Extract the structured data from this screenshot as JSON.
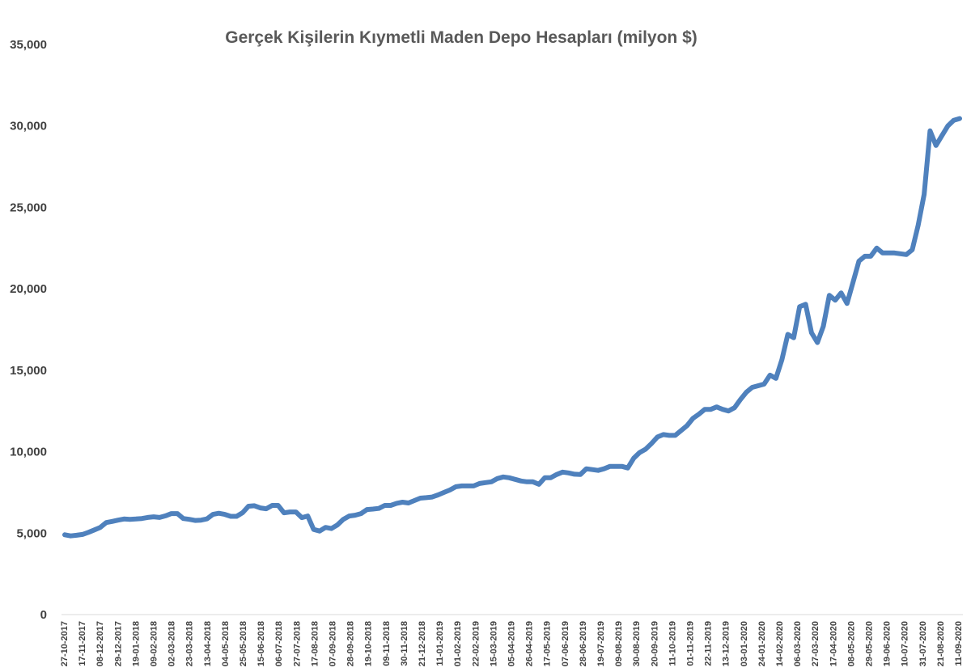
{
  "chart_data": {
    "type": "line",
    "title": "Gerçek Kişilerin Kıymetli Maden Depo Hesapları (milyon $)",
    "xlabel": "",
    "ylabel": "",
    "ylim": [
      0,
      35000
    ],
    "yticks": [
      "0",
      "5,000",
      "10,000",
      "15,000",
      "20,000",
      "25,000",
      "30,000",
      "35,000"
    ],
    "ytick_values": [
      0,
      5000,
      10000,
      15000,
      20000,
      25000,
      30000,
      35000
    ],
    "grid": false,
    "legend": "none",
    "line_color": "#4f81bd",
    "xtick_labels": [
      "27-10-2017",
      "17-11-2017",
      "08-12-2017",
      "29-12-2017",
      "19-01-2018",
      "09-02-2018",
      "02-03-2018",
      "23-03-2018",
      "13-04-2018",
      "04-05-2018",
      "25-05-2018",
      "15-06-2018",
      "06-07-2018",
      "27-07-2018",
      "17-08-2018",
      "07-09-2018",
      "28-09-2018",
      "19-10-2018",
      "09-11-2018",
      "30-11-2018",
      "21-12-2018",
      "11-01-2019",
      "01-02-2019",
      "22-02-2019",
      "15-03-2019",
      "05-04-2019",
      "26-04-2019",
      "17-05-2019",
      "07-06-2019",
      "28-06-2019",
      "19-07-2019",
      "09-08-2019",
      "30-08-2019",
      "20-09-2019",
      "11-10-2019",
      "01-11-2019",
      "22-11-2019",
      "13-12-2019",
      "03-01-2020",
      "24-01-2020",
      "14-02-2020",
      "06-03-2020",
      "27-03-2020",
      "17-04-2020",
      "08-05-2020",
      "29-05-2020",
      "19-06-2020",
      "10-07-2020",
      "31-07-2020",
      "21-08-2020",
      "11-09-2020"
    ],
    "series": [
      {
        "values": [
          4900,
          4830,
          4870,
          4920,
          5050,
          5200,
          5350,
          5650,
          5720,
          5800,
          5870,
          5850,
          5870,
          5900,
          5960,
          6000,
          5960,
          6060,
          6200,
          6200,
          5900,
          5850,
          5780,
          5800,
          5880,
          6150,
          6220,
          6150,
          6030,
          6030,
          6250,
          6650,
          6680,
          6550,
          6500,
          6700,
          6700,
          6250,
          6300,
          6300,
          5950,
          6050,
          5230,
          5130,
          5350,
          5280,
          5500,
          5850,
          6050,
          6100,
          6200,
          6450,
          6480,
          6520,
          6700,
          6700,
          6830,
          6900,
          6850,
          7000,
          7150,
          7180,
          7220,
          7350,
          7500,
          7650,
          7850,
          7900,
          7900,
          7900,
          8050,
          8100,
          8150,
          8350,
          8450,
          8400,
          8300,
          8200,
          8150,
          8150,
          8000,
          8400,
          8400,
          8600,
          8750,
          8700,
          8620,
          8600,
          8950,
          8900,
          8850,
          8950,
          9100,
          9100,
          9100,
          9000,
          9600,
          9950,
          10150,
          10500,
          10900,
          11050,
          11000,
          11000,
          11300,
          11600,
          12050,
          12300,
          12600,
          12600,
          12750,
          12600,
          12500,
          12700,
          13200,
          13650,
          13950,
          14050,
          14150,
          14700,
          14500,
          15650,
          17200,
          17000,
          18900,
          19050,
          17300,
          16700,
          17700,
          19600,
          19300,
          19750,
          19100,
          20400,
          21700,
          22000,
          22000,
          22500,
          22200,
          22200,
          22200,
          22150,
          22100,
          22400,
          23900,
          25800,
          29700,
          28800,
          29400,
          30000,
          30350,
          30450
        ]
      }
    ]
  }
}
